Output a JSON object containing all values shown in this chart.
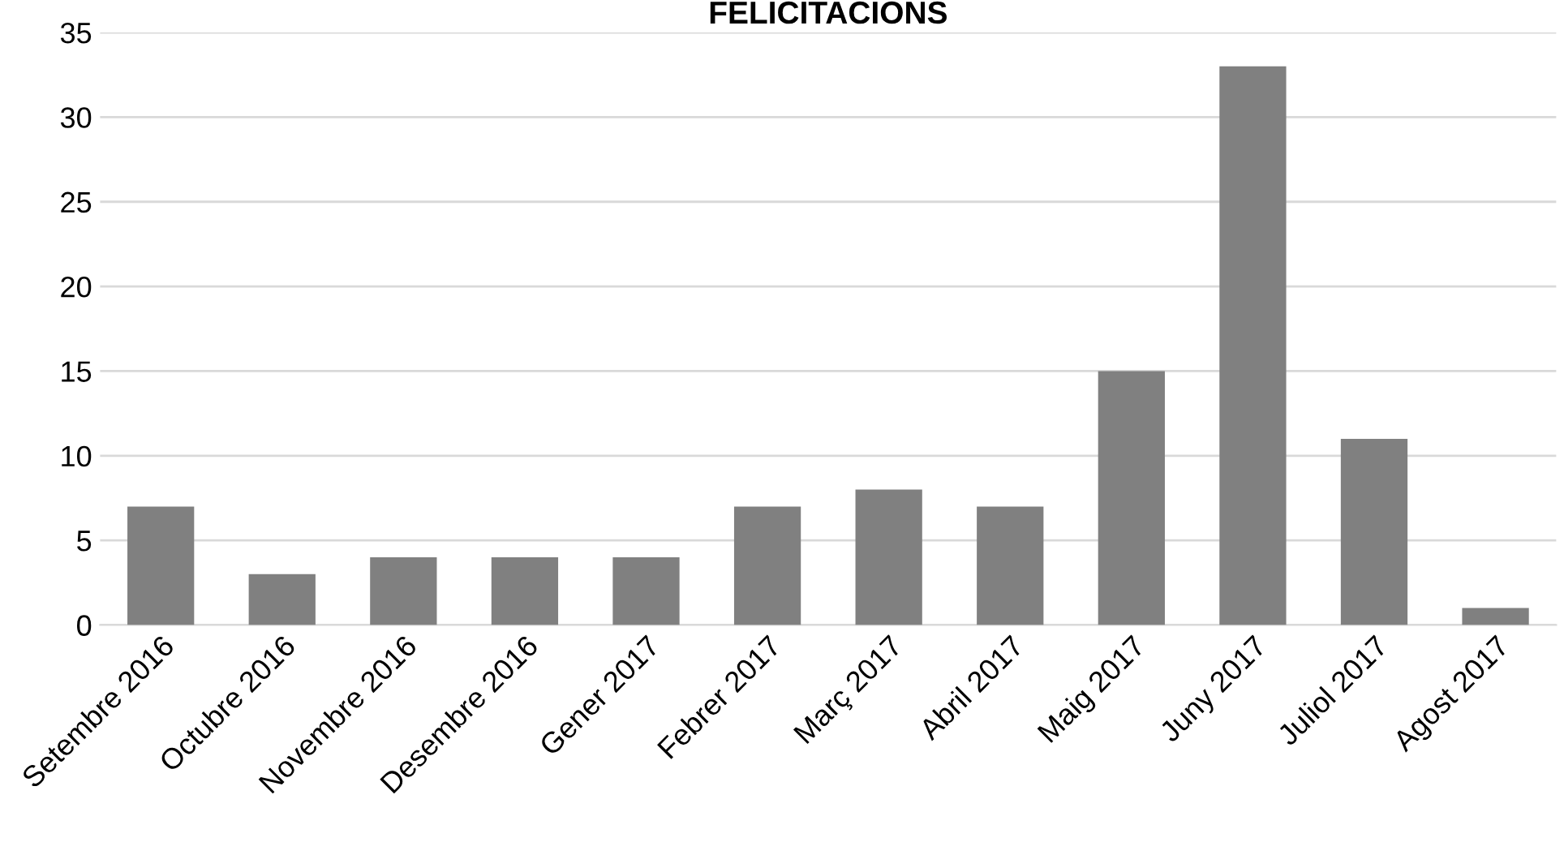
{
  "chart_data": {
    "type": "bar",
    "title": "FELICITACIONS",
    "categories": [
      "Setembre 2016",
      "Octubre 2016",
      "Novembre 2016",
      "Desembre 2016",
      "Gener 2017",
      "Febrer 2017",
      "Març 2017",
      "Abril 2017",
      "Maig 2017",
      "Juny 2017",
      "Juliol 2017",
      "Agost 2017"
    ],
    "values": [
      7,
      3,
      4,
      4,
      4,
      7,
      8,
      7,
      15,
      33,
      11,
      1
    ],
    "color": "#808080",
    "ylim": [
      0,
      35
    ],
    "yticks": [
      0,
      5,
      10,
      15,
      20,
      25,
      30,
      35
    ],
    "grid": "y",
    "legend": false
  }
}
